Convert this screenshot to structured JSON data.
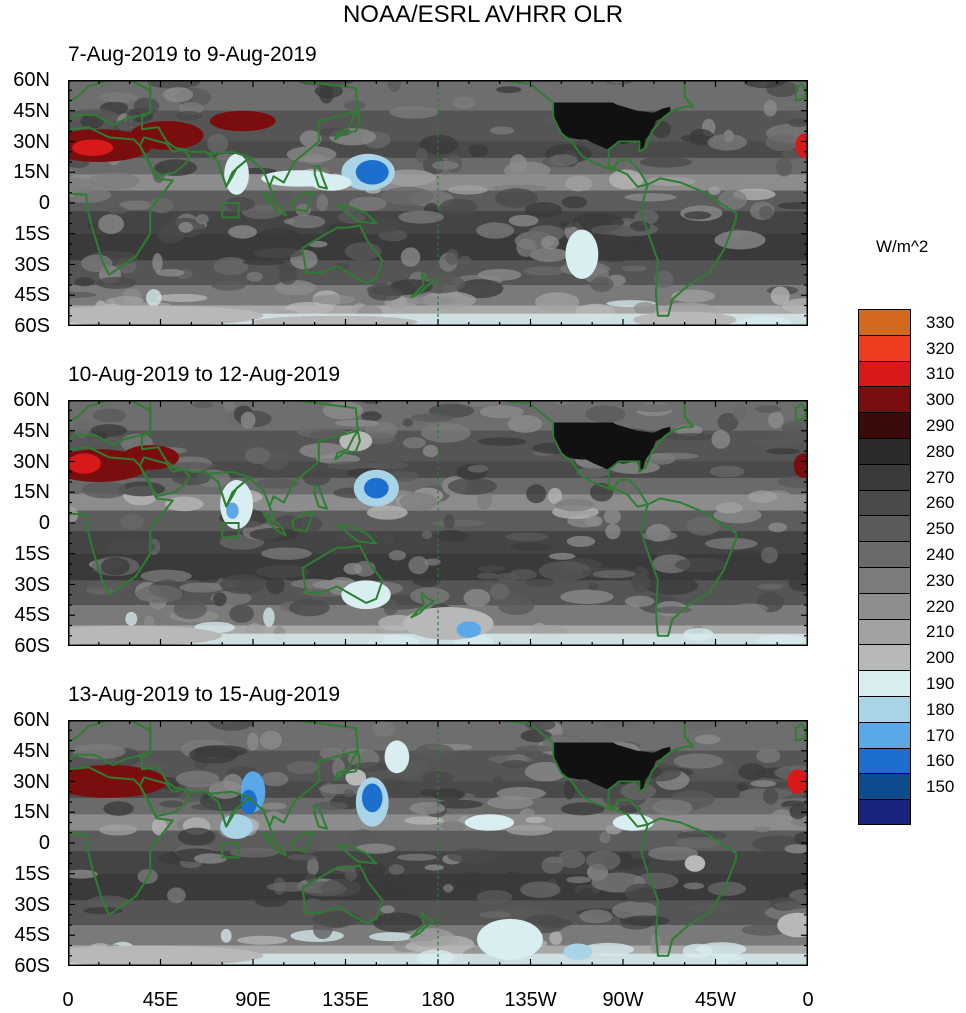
{
  "title": "NOAA/ESRL AVHRR OLR",
  "units": "W/m^2",
  "panels": [
    {
      "period": "7-Aug-2019 to 9-Aug-2019"
    },
    {
      "period": "10-Aug-2019 to 12-Aug-2019"
    },
    {
      "period": "13-Aug-2019 to 15-Aug-2019"
    }
  ],
  "lat_labels": [
    "60N",
    "45N",
    "30N",
    "15N",
    "0",
    "15S",
    "30S",
    "45S",
    "60S"
  ],
  "lon_labels": [
    "0",
    "45E",
    "90E",
    "135E",
    "180",
    "135W",
    "90W",
    "45W",
    "0"
  ],
  "colorbar": {
    "levels": [
      "330",
      "320",
      "310",
      "300",
      "290",
      "280",
      "270",
      "260",
      "250",
      "240",
      "230",
      "220",
      "210",
      "200",
      "190",
      "180",
      "170",
      "160",
      "150"
    ],
    "colors": [
      "#d2691e",
      "#f03c1e",
      "#d7191c",
      "#7a0e0e",
      "#3b0a0a",
      "#2b2b2b",
      "#3a3a3a",
      "#4a4a4a",
      "#5a5a5a",
      "#6a6a6a",
      "#7c7c7c",
      "#8e8e8e",
      "#a2a2a2",
      "#b8b8b8",
      "#d8eef0",
      "#a9d3e6",
      "#5aa8e8",
      "#1c6fcc",
      "#0f4c8f",
      "#1a237e"
    ]
  },
  "colors": {
    "coastline": "#2e7d32",
    "land_us": "#111111"
  }
}
